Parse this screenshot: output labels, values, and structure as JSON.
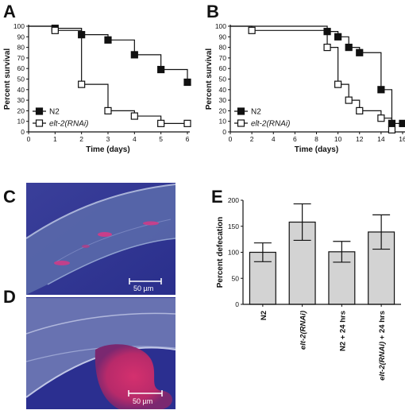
{
  "panels": {
    "A": "A",
    "B": "B",
    "C": "C",
    "D": "D",
    "E": "E"
  },
  "micrographs": {
    "C": {
      "scalebar": "50 µm"
    },
    "D": {
      "scalebar": "50 µm"
    }
  },
  "chart_data": [
    {
      "panel": "A",
      "type": "line",
      "step": true,
      "title": "",
      "xlabel": "Time (days)",
      "ylabel": "Percent survival",
      "xlim": [
        0,
        6
      ],
      "ylim": [
        0,
        100
      ],
      "xticks": [
        0,
        1,
        2,
        3,
        4,
        5,
        6
      ],
      "yticks": [
        0,
        10,
        20,
        30,
        40,
        50,
        60,
        70,
        80,
        90,
        100
      ],
      "legend": "bottom-left",
      "series": [
        {
          "name": "N2",
          "marker": "filled-square",
          "x": [
            0,
            1,
            2,
            3,
            4,
            5,
            6
          ],
          "y": [
            100,
            98,
            92,
            87,
            73,
            59,
            47
          ]
        },
        {
          "name": "elt-2(RNAi)",
          "italic": true,
          "marker": "open-square",
          "x": [
            0,
            1,
            2,
            3,
            4,
            5,
            6
          ],
          "y": [
            100,
            96,
            45,
            20,
            15,
            8,
            8
          ]
        }
      ]
    },
    {
      "panel": "B",
      "type": "line",
      "step": true,
      "title": "",
      "xlabel": "Time (days)",
      "ylabel": "Percent survival",
      "xlim": [
        0,
        16
      ],
      "ylim": [
        0,
        100
      ],
      "xticks": [
        0,
        2,
        4,
        6,
        8,
        10,
        12,
        14,
        16
      ],
      "yticks": [
        0,
        10,
        20,
        30,
        40,
        50,
        60,
        70,
        80,
        90,
        100
      ],
      "legend": "bottom-left",
      "series": [
        {
          "name": "N2",
          "marker": "filled-square",
          "x": [
            0,
            9,
            10,
            11,
            12,
            14,
            15,
            16
          ],
          "y": [
            100,
            95,
            90,
            80,
            75,
            40,
            8,
            8
          ]
        },
        {
          "name": "elt-2(RNAi)",
          "italic": true,
          "marker": "open-square",
          "x": [
            0,
            2,
            9,
            10,
            11,
            12,
            14,
            15
          ],
          "y": [
            100,
            96,
            80,
            45,
            30,
            20,
            13,
            2
          ]
        }
      ]
    },
    {
      "panel": "E",
      "type": "bar",
      "title": "",
      "xlabel": "",
      "ylabel": "Percent defecation",
      "ylim": [
        0,
        200
      ],
      "yticks": [
        0,
        50,
        100,
        150,
        200
      ],
      "categories": [
        "N2",
        "elt-2(RNAi)",
        "N2 + 24 hrs",
        "elt-2(RNAi) + 24 hrs"
      ],
      "category_italic_part": [
        "",
        "elt-2(RNAi)",
        "",
        "elt-2(RNAi)"
      ],
      "values": [
        100,
        158,
        101,
        139
      ],
      "error": [
        18,
        35,
        20,
        33
      ],
      "bar_color": "#d3d3d3",
      "grid": false
    }
  ]
}
